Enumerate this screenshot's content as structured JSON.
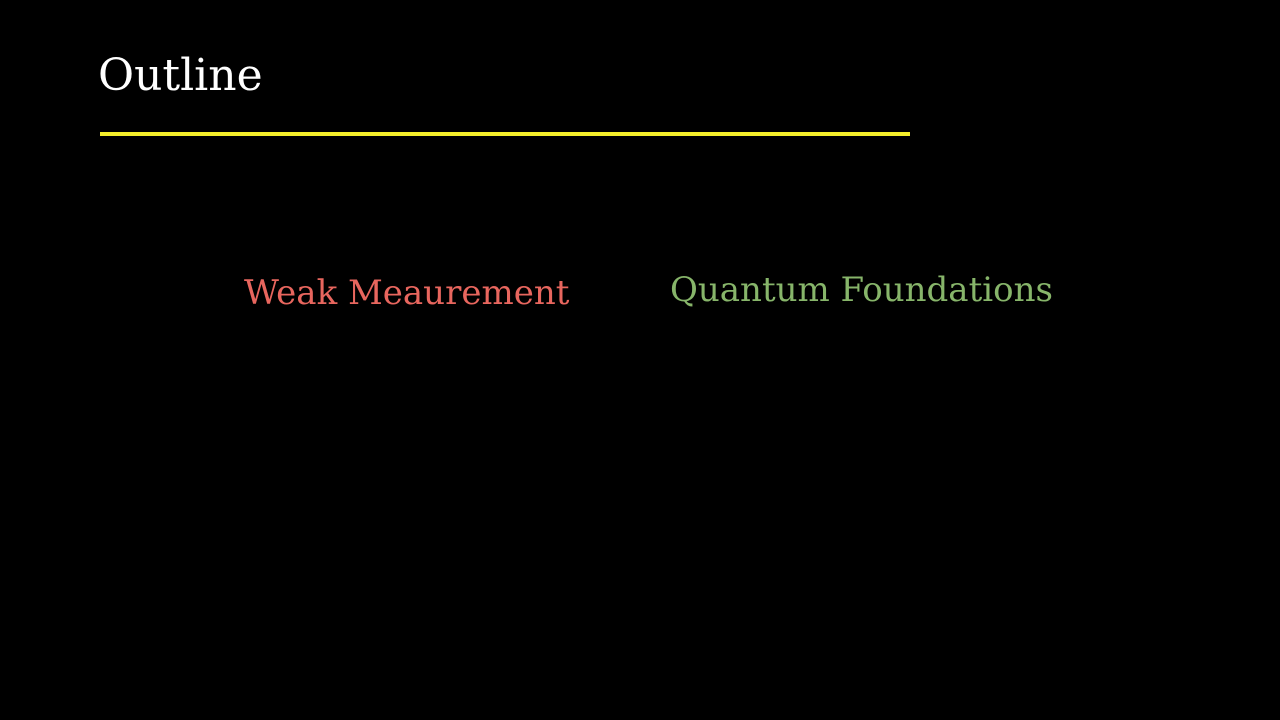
{
  "slide": {
    "title": "Outline",
    "topics": [
      {
        "label": "Weak Meaurement",
        "color": "#e8665e"
      },
      {
        "label": "Quantum Foundations",
        "color": "#87b56a"
      }
    ],
    "colors": {
      "background": "#000000",
      "title": "#ffffff",
      "rule": "#f4ee2a"
    }
  }
}
